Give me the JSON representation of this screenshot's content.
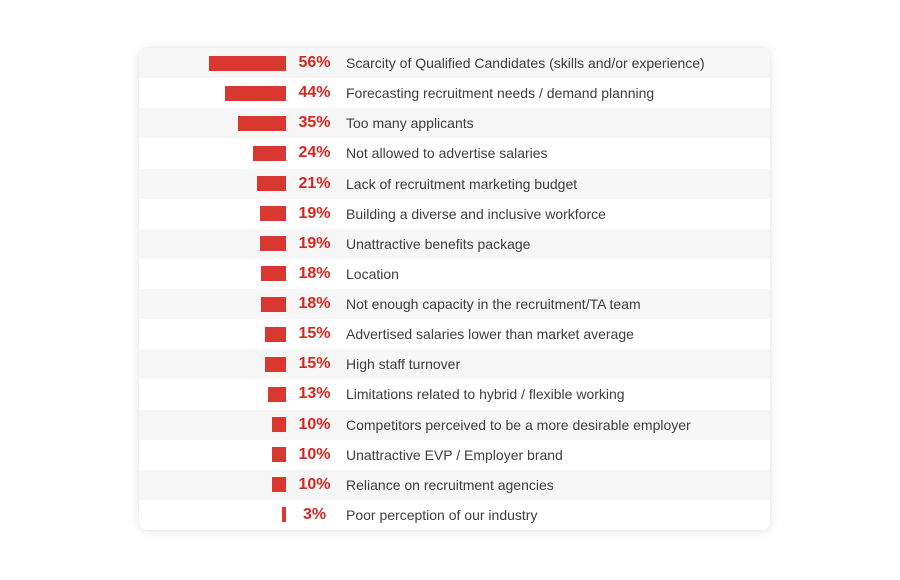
{
  "chart_data": {
    "type": "bar",
    "orientation": "horizontal",
    "title": "",
    "xlabel": "",
    "ylabel": "",
    "value_format": "percent",
    "xlim": [
      0,
      56
    ],
    "grid": false,
    "legend": false,
    "categories": [
      "Scarcity of Qualified Candidates (skills and/or experience)",
      "Forecasting recruitment needs / demand planning",
      "Too many applicants",
      "Not allowed to advertise salaries",
      "Lack of recruitment marketing budget",
      "Building a diverse and inclusive workforce",
      "Unattractive benefits package",
      "Location",
      "Not enough capacity in the recruitment/TA team",
      "Advertised salaries lower than market average",
      "High staff turnover",
      "Limitations related to hybrid / flexible working",
      "Competitors perceived to be a more desirable employer",
      "Unattractive EVP / Employer brand",
      "Reliance on recruitment agencies",
      "Poor perception of our industry"
    ],
    "values": [
      56,
      44,
      35,
      24,
      21,
      19,
      19,
      18,
      18,
      15,
      15,
      13,
      10,
      10,
      10,
      3
    ],
    "value_labels": [
      "56%",
      "44%",
      "35%",
      "24%",
      "21%",
      "19%",
      "19%",
      "18%",
      "18%",
      "15%",
      "15%",
      "13%",
      "10%",
      "10%",
      "10%",
      "3%"
    ]
  },
  "colors": {
    "bar": "#d8382f",
    "value_text": "#d7261f",
    "label_text": "#3d3d3d",
    "row_alt": "#f6f6f6",
    "row_base": "#ffffff",
    "card_bg": "#ffffff",
    "page_bg": "#ffffff"
  }
}
